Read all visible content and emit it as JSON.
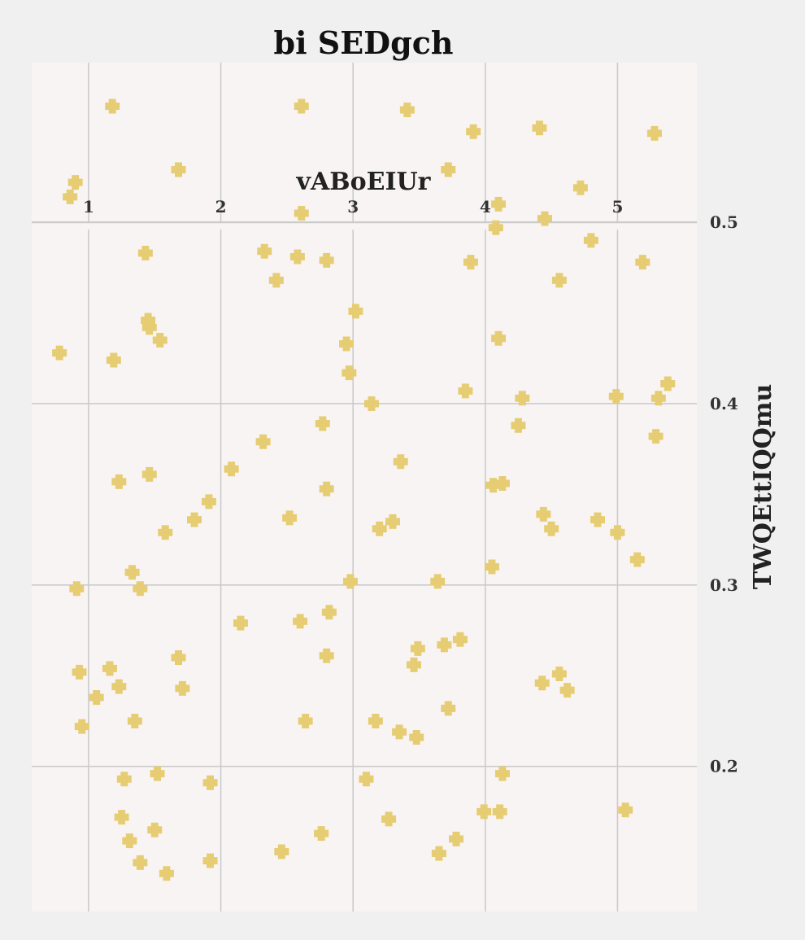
{
  "chart_data": {
    "type": "scatter",
    "title": "bi  SEDgch",
    "xlabel": "vABoEIUr",
    "ylabel": "TWQEttIQQmu",
    "x_axis_position": "top",
    "y_axis_position": "right",
    "xlim": [
      0.57,
      5.6
    ],
    "ylim": [
      0.12,
      0.588
    ],
    "xticks": [
      1,
      2,
      3,
      4,
      5
    ],
    "yticks": [
      0.2,
      0.3,
      0.4,
      0.5
    ],
    "xtick_labels": [
      "1",
      "2",
      "3",
      "4",
      "5"
    ],
    "ytick_labels": [
      "0.2",
      "0.3",
      "0.4",
      "0.5"
    ],
    "grid": true,
    "marker": "plus",
    "colors": {
      "page_bg": "#f0f0f0",
      "plot_bg": "#f9f4f4",
      "grid": "#cbcbcb",
      "marker": "#e6cd73"
    },
    "series": [
      {
        "x": [
          1.18,
          2.61,
          3.41,
          3.91,
          4.41,
          5.28,
          0.9,
          1.68,
          3.72,
          0.86,
          4.72,
          4.1,
          2.61,
          4.45,
          4.08,
          4.8,
          1.43,
          2.33,
          2.58,
          2.8,
          3.89,
          5.19,
          2.42,
          4.56,
          3.02,
          1.45,
          1.46,
          1.54,
          2.95,
          4.1,
          0.78,
          1.19,
          2.97,
          3.14,
          3.85,
          4.28,
          4.99,
          5.31,
          5.38,
          2.77,
          4.25,
          2.32,
          5.29,
          3.36,
          2.08,
          1.23,
          1.46,
          4.06,
          4.13,
          1.91,
          2.8,
          2.52,
          1.8,
          3.3,
          4.44,
          4.85,
          3.2,
          1.58,
          4.5,
          5.0,
          5.15,
          1.33,
          0.91,
          1.39,
          2.98,
          3.64,
          4.05,
          2.82,
          2.15,
          2.6,
          3.81,
          3.69,
          3.49,
          1.68,
          2.8,
          3.46,
          1.16,
          0.93,
          4.56,
          1.23,
          4.43,
          1.71,
          4.62,
          1.06,
          3.72,
          1.35,
          2.64,
          3.17,
          0.95,
          3.35,
          3.48,
          1.52,
          4.13,
          1.27,
          1.92,
          3.1,
          3.99,
          4.11,
          5.06,
          1.25,
          3.27,
          1.5,
          2.76,
          1.31,
          3.78,
          2.46,
          3.65,
          1.39,
          1.92,
          1.59
        ],
        "y": [
          0.564,
          0.564,
          0.562,
          0.55,
          0.552,
          0.549,
          0.522,
          0.529,
          0.529,
          0.514,
          0.519,
          0.51,
          0.505,
          0.502,
          0.497,
          0.49,
          0.483,
          0.484,
          0.481,
          0.479,
          0.478,
          0.478,
          0.468,
          0.468,
          0.451,
          0.446,
          0.442,
          0.435,
          0.433,
          0.436,
          0.428,
          0.424,
          0.417,
          0.4,
          0.407,
          0.403,
          0.404,
          0.403,
          0.411,
          0.389,
          0.388,
          0.379,
          0.382,
          0.368,
          0.364,
          0.357,
          0.361,
          0.355,
          0.356,
          0.346,
          0.353,
          0.337,
          0.336,
          0.335,
          0.339,
          0.336,
          0.331,
          0.329,
          0.331,
          0.329,
          0.314,
          0.307,
          0.298,
          0.298,
          0.302,
          0.302,
          0.31,
          0.285,
          0.279,
          0.28,
          0.27,
          0.267,
          0.265,
          0.26,
          0.261,
          0.256,
          0.254,
          0.252,
          0.251,
          0.244,
          0.246,
          0.243,
          0.242,
          0.238,
          0.232,
          0.225,
          0.225,
          0.225,
          0.222,
          0.219,
          0.216,
          0.196,
          0.196,
          0.193,
          0.191,
          0.193,
          0.175,
          0.175,
          0.176,
          0.172,
          0.171,
          0.165,
          0.163,
          0.159,
          0.16,
          0.153,
          0.152,
          0.147,
          0.148,
          0.141
        ]
      }
    ]
  }
}
